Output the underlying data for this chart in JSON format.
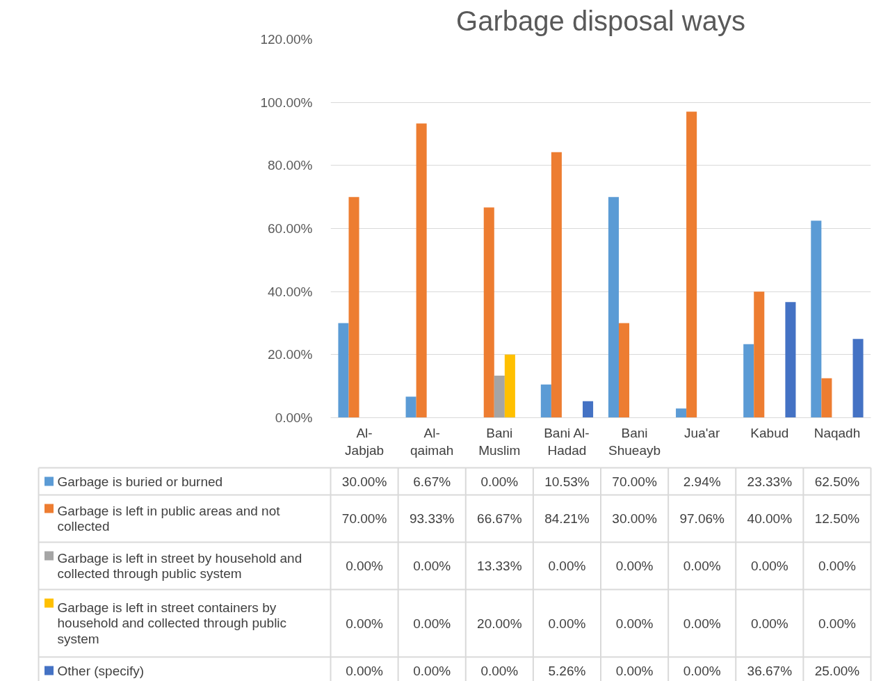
{
  "chart_data": {
    "type": "bar",
    "title": "Garbage disposal ways",
    "categories": [
      "Al-Jabjab",
      "Al-qaimah",
      "Bani Muslim",
      "Bani Al-Hadad",
      "Bani Shueayb",
      "Jua'ar",
      "Kabud",
      "Naqadh"
    ],
    "series": [
      {
        "name": "Garbage is buried or burned",
        "color": "#5b9bd5",
        "values": [
          30.0,
          6.67,
          0.0,
          10.53,
          70.0,
          2.94,
          23.33,
          62.5
        ],
        "value_labels": [
          "30.00%",
          "6.67%",
          "0.00%",
          "10.53%",
          "70.00%",
          "2.94%",
          "23.33%",
          "62.50%"
        ]
      },
      {
        "name": "Garbage is left in public areas and not collected",
        "color": "#ed7d31",
        "values": [
          70.0,
          93.33,
          66.67,
          84.21,
          30.0,
          97.06,
          40.0,
          12.5
        ],
        "value_labels": [
          "70.00%",
          "93.33%",
          "66.67%",
          "84.21%",
          "30.00%",
          "97.06%",
          "40.00%",
          "12.50%"
        ]
      },
      {
        "name": "Garbage is left in street by household and collected through public system",
        "color": "#a5a5a5",
        "values": [
          0.0,
          0.0,
          13.33,
          0.0,
          0.0,
          0.0,
          0.0,
          0.0
        ],
        "value_labels": [
          "0.00%",
          "0.00%",
          "13.33%",
          "0.00%",
          "0.00%",
          "0.00%",
          "0.00%",
          "0.00%"
        ]
      },
      {
        "name": "Garbage is left in street containers by household and collected through public system",
        "color": "#ffc000",
        "values": [
          0.0,
          0.0,
          20.0,
          0.0,
          0.0,
          0.0,
          0.0,
          0.0
        ],
        "value_labels": [
          "0.00%",
          "0.00%",
          "20.00%",
          "0.00%",
          "0.00%",
          "0.00%",
          "0.00%",
          "0.00%"
        ]
      },
      {
        "name": "Other (specify)",
        "color": "#4472c4",
        "values": [
          0.0,
          0.0,
          0.0,
          5.26,
          0.0,
          0.0,
          36.67,
          25.0
        ],
        "value_labels": [
          "0.00%",
          "0.00%",
          "0.00%",
          "5.26%",
          "0.00%",
          "0.00%",
          "36.67%",
          "25.00%"
        ]
      }
    ],
    "ylim": [
      0,
      120
    ],
    "yticks": [
      {
        "value": 0,
        "label": "0.00%"
      },
      {
        "value": 20,
        "label": "20.00%"
      },
      {
        "value": 40,
        "label": "40.00%"
      },
      {
        "value": 60,
        "label": "60.00%"
      },
      {
        "value": 80,
        "label": "80.00%"
      },
      {
        "value": 100,
        "label": "100.00%"
      },
      {
        "value": 120,
        "label": "120.00%"
      }
    ],
    "grid": "y",
    "legend": "bottom"
  }
}
